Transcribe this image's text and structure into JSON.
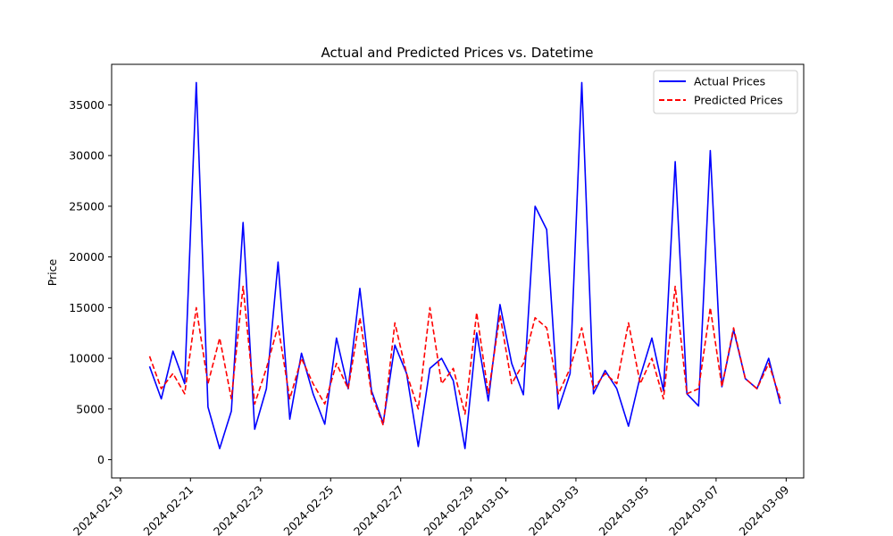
{
  "chart_data": {
    "type": "line",
    "title": "Actual and Predicted Prices vs. Datetime",
    "xlabel": "",
    "ylabel": "Price",
    "x_type": "datetime",
    "xlim": [
      "2024-02-18T18:00",
      "2024-03-09T12:00"
    ],
    "ylim": [
      -1800,
      39000
    ],
    "x_ticks": [
      "2024-02-19",
      "2024-02-21",
      "2024-02-23",
      "2024-02-25",
      "2024-02-27",
      "2024-02-29",
      "2024-03-01",
      "2024-03-03",
      "2024-03-05",
      "2024-03-07",
      "2024-03-09"
    ],
    "y_ticks": [
      0,
      5000,
      10000,
      15000,
      20000,
      25000,
      30000,
      35000
    ],
    "grid": false,
    "legend_position": "top-right",
    "x": [
      "2024-02-19T20:00",
      "2024-02-20T04:00",
      "2024-02-20T12:00",
      "2024-02-20T20:00",
      "2024-02-21T04:00",
      "2024-02-21T12:00",
      "2024-02-21T20:00",
      "2024-02-22T04:00",
      "2024-02-22T12:00",
      "2024-02-22T20:00",
      "2024-02-23T04:00",
      "2024-02-23T12:00",
      "2024-02-23T20:00",
      "2024-02-24T04:00",
      "2024-02-24T12:00",
      "2024-02-24T20:00",
      "2024-02-25T04:00",
      "2024-02-25T12:00",
      "2024-02-25T20:00",
      "2024-02-26T04:00",
      "2024-02-26T12:00",
      "2024-02-26T20:00",
      "2024-02-27T04:00",
      "2024-02-27T12:00",
      "2024-02-27T20:00",
      "2024-02-28T04:00",
      "2024-02-28T12:00",
      "2024-02-28T20:00",
      "2024-02-29T04:00",
      "2024-02-29T12:00",
      "2024-02-29T20:00",
      "2024-03-01T04:00",
      "2024-03-01T12:00",
      "2024-03-01T20:00",
      "2024-03-02T04:00",
      "2024-03-02T12:00",
      "2024-03-02T20:00",
      "2024-03-03T04:00",
      "2024-03-03T12:00",
      "2024-03-03T20:00",
      "2024-03-04T04:00",
      "2024-03-04T12:00",
      "2024-03-04T20:00",
      "2024-03-05T04:00",
      "2024-03-05T12:00",
      "2024-03-05T20:00",
      "2024-03-06T04:00",
      "2024-03-06T12:00",
      "2024-03-06T20:00",
      "2024-03-07T04:00",
      "2024-03-07T12:00",
      "2024-03-07T20:00",
      "2024-03-08T04:00",
      "2024-03-08T12:00",
      "2024-03-08T20:00"
    ],
    "series": [
      {
        "name": "Actual Prices",
        "color": "#0000ff",
        "style": "solid",
        "values": [
          9200,
          6000,
          10700,
          7500,
          37200,
          5200,
          1100,
          4800,
          23400,
          3000,
          7000,
          19500,
          4000,
          10500,
          6500,
          3500,
          12000,
          7000,
          16900,
          6800,
          3600,
          11300,
          8500,
          1300,
          9000,
          10000,
          7800,
          1100,
          12500,
          5800,
          15300,
          9500,
          6400,
          25000,
          22700,
          5000,
          8500,
          37200,
          6500,
          8800,
          7000,
          3300,
          8200,
          12000,
          6800,
          29400,
          6500,
          5300,
          30500,
          7200,
          12800,
          8000,
          7000,
          10000,
          5500
        ]
      },
      {
        "name": "Predicted Prices",
        "color": "#ff0000",
        "style": "dashed",
        "values": [
          10200,
          7000,
          8500,
          6500,
          15000,
          7500,
          12000,
          6000,
          17100,
          5500,
          9000,
          13200,
          6000,
          10000,
          7500,
          5500,
          9500,
          7000,
          14000,
          6500,
          3400,
          13500,
          8500,
          5000,
          15000,
          7500,
          9000,
          4500,
          14500,
          6500,
          14300,
          7500,
          9500,
          14000,
          13000,
          6500,
          9000,
          13000,
          7000,
          8500,
          7500,
          13500,
          7500,
          10000,
          6000,
          17100,
          6500,
          7000,
          15000,
          7200,
          13000,
          8000,
          7000,
          9500,
          6000
        ]
      }
    ]
  }
}
